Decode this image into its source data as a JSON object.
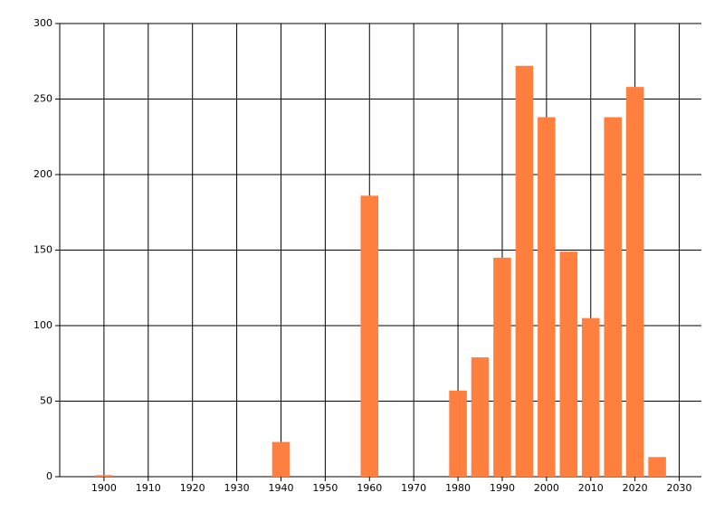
{
  "chart_data": {
    "type": "bar",
    "x": [
      1900,
      1940,
      1960,
      1980,
      1985,
      1990,
      1995,
      2000,
      2005,
      2010,
      2015,
      2020,
      2025
    ],
    "values": [
      1,
      23,
      186,
      57,
      79,
      145,
      272,
      238,
      149,
      105,
      238,
      258,
      13
    ],
    "color": "#ff7f3f",
    "xlim": [
      1890,
      2035
    ],
    "xticks": [
      1900,
      1910,
      1920,
      1930,
      1940,
      1950,
      1960,
      1970,
      1980,
      1990,
      2000,
      2010,
      2020,
      2030
    ],
    "ylim": [
      0,
      300
    ],
    "yticks": [
      0,
      50,
      100,
      150,
      200,
      250,
      300
    ],
    "grid": true
  }
}
